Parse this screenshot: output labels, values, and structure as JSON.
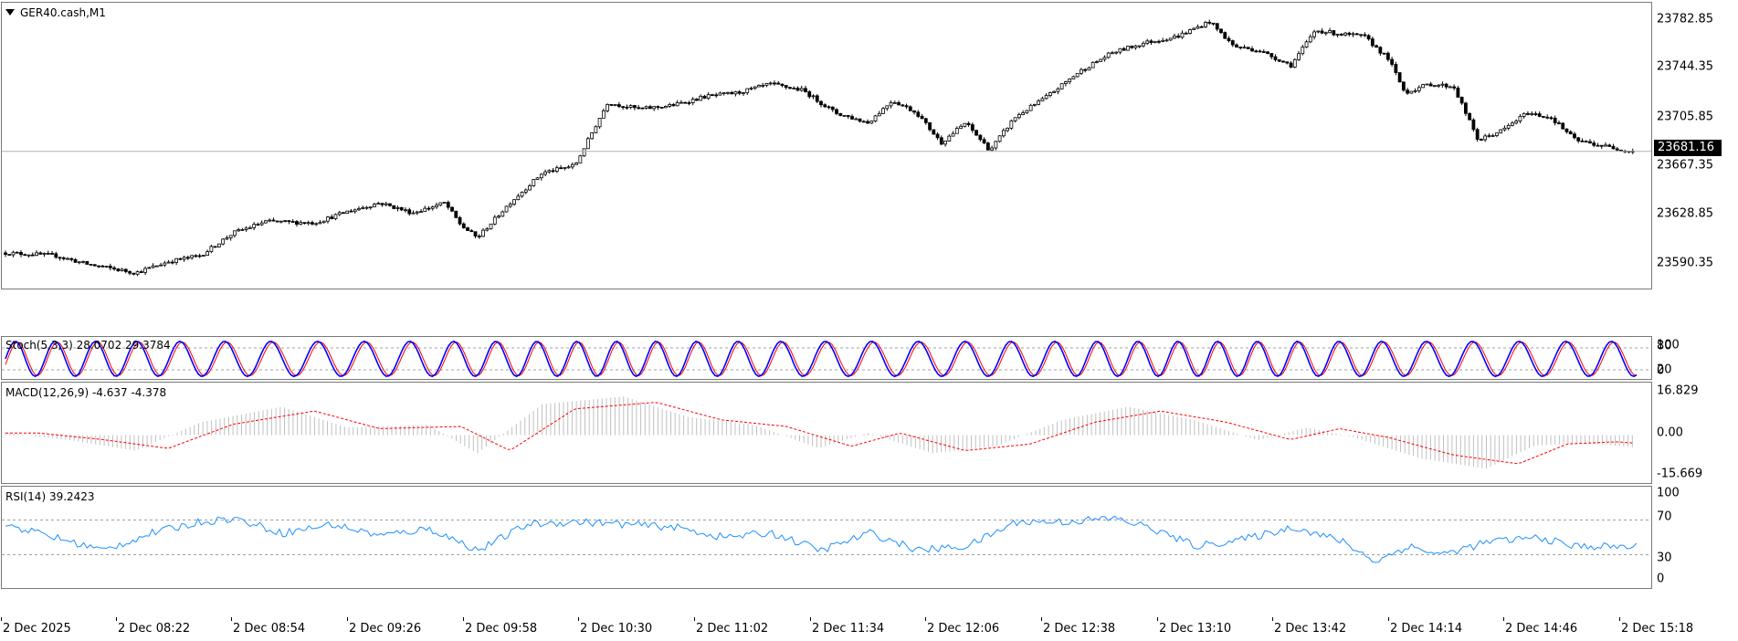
{
  "main": {
    "title": "GER40.cash,M1",
    "price_marker": "23681.16",
    "price_axis": [
      "23782.85",
      "23744.35",
      "23705.85",
      "23667.35",
      "23628.85",
      "23590.35"
    ]
  },
  "stoch": {
    "title": "Stoch(5,3,3) 28.0702 29.3784",
    "axis": [
      "100",
      "80",
      "20",
      "0"
    ]
  },
  "macd": {
    "title": "MACD(12,26,9) -4.637 -4.378",
    "axis": [
      "16.829",
      "0.00",
      "-15.669"
    ]
  },
  "rsi": {
    "title": "RSI(14) 39.2423",
    "axis": [
      "100",
      "70",
      "30",
      "0"
    ]
  },
  "time_axis": [
    "2 Dec 2025",
    "2 Dec 08:22",
    "2 Dec 08:54",
    "2 Dec 09:26",
    "2 Dec 09:58",
    "2 Dec 10:30",
    "2 Dec 11:02",
    "2 Dec 11:34",
    "2 Dec 12:06",
    "2 Dec 12:38",
    "2 Dec 13:10",
    "2 Dec 13:42",
    "2 Dec 14:14",
    "2 Dec 14:46",
    "2 Dec 15:18"
  ],
  "colors": {
    "candle": "#000000",
    "stoch_main": "#0000ff",
    "stoch_signal": "#ff0000",
    "macd_hist": "#c0c0c0",
    "macd_signal": "#ff0000",
    "rsi": "#1e90ff",
    "level": "#a0a0a0"
  },
  "chart_data": [
    {
      "type": "candlestick",
      "title": "GER40.cash,M1",
      "ylim": [
        23570,
        23800
      ],
      "last": 23681.16,
      "price_path": [
        [
          0,
          23600
        ],
        [
          0.03,
          23598
        ],
        [
          0.05,
          23591
        ],
        [
          0.08,
          23584
        ],
        [
          0.1,
          23593
        ],
        [
          0.12,
          23598
        ],
        [
          0.14,
          23616
        ],
        [
          0.16,
          23625
        ],
        [
          0.19,
          23624
        ],
        [
          0.21,
          23633
        ],
        [
          0.23,
          23640
        ],
        [
          0.25,
          23632
        ],
        [
          0.27,
          23640
        ],
        [
          0.28,
          23622
        ],
        [
          0.29,
          23612
        ],
        [
          0.31,
          23640
        ],
        [
          0.33,
          23664
        ],
        [
          0.35,
          23670
        ],
        [
          0.37,
          23720
        ],
        [
          0.39,
          23715
        ],
        [
          0.41,
          23718
        ],
        [
          0.43,
          23725
        ],
        [
          0.45,
          23728
        ],
        [
          0.47,
          23735
        ],
        [
          0.49,
          23730
        ],
        [
          0.51,
          23712
        ],
        [
          0.53,
          23704
        ],
        [
          0.545,
          23722
        ],
        [
          0.56,
          23712
        ],
        [
          0.575,
          23688
        ],
        [
          0.59,
          23704
        ],
        [
          0.605,
          23682
        ],
        [
          0.62,
          23708
        ],
        [
          0.64,
          23725
        ],
        [
          0.66,
          23745
        ],
        [
          0.68,
          23760
        ],
        [
          0.7,
          23768
        ],
        [
          0.72,
          23773
        ],
        [
          0.74,
          23785
        ],
        [
          0.755,
          23765
        ],
        [
          0.77,
          23762
        ],
        [
          0.79,
          23750
        ],
        [
          0.805,
          23778
        ],
        [
          0.82,
          23775
        ],
        [
          0.835,
          23773
        ],
        [
          0.85,
          23755
        ],
        [
          0.86,
          23728
        ],
        [
          0.875,
          23735
        ],
        [
          0.89,
          23733
        ],
        [
          0.905,
          23690
        ],
        [
          0.92,
          23698
        ],
        [
          0.935,
          23712
        ],
        [
          0.95,
          23708
        ],
        [
          0.965,
          23690
        ],
        [
          0.98,
          23686
        ],
        [
          1.0,
          23681
        ]
      ]
    },
    {
      "type": "line",
      "title": "Stoch(5,3,3) 28.0702 29.3784",
      "ylim": [
        0,
        100
      ],
      "levels": [
        20,
        80
      ],
      "series": [
        {
          "name": "Main",
          "last": 28.0702,
          "cycles": 38
        },
        {
          "name": "Signal",
          "last": 29.3784,
          "cycles": 38
        }
      ]
    },
    {
      "type": "bar",
      "title": "MACD(12,26,9) -4.637 -4.378",
      "ylim": [
        -15.669,
        16.829
      ],
      "series": [
        {
          "name": "Main",
          "last": -4.637
        },
        {
          "name": "Signal",
          "last": -4.378
        }
      ],
      "profile": [
        [
          0,
          1
        ],
        [
          0.04,
          -2
        ],
        [
          0.08,
          -6
        ],
        [
          0.12,
          5
        ],
        [
          0.17,
          11
        ],
        [
          0.21,
          3
        ],
        [
          0.26,
          4
        ],
        [
          0.29,
          -7
        ],
        [
          0.33,
          12
        ],
        [
          0.38,
          15
        ],
        [
          0.42,
          7
        ],
        [
          0.46,
          4
        ],
        [
          0.5,
          -5
        ],
        [
          0.53,
          1
        ],
        [
          0.57,
          -7
        ],
        [
          0.61,
          -4
        ],
        [
          0.65,
          6
        ],
        [
          0.69,
          11
        ],
        [
          0.73,
          6
        ],
        [
          0.77,
          -2
        ],
        [
          0.8,
          3
        ],
        [
          0.83,
          -1
        ],
        [
          0.87,
          -9
        ],
        [
          0.91,
          -13
        ],
        [
          0.94,
          -4
        ],
        [
          0.97,
          -3
        ],
        [
          1.0,
          -4.6
        ]
      ]
    },
    {
      "type": "line",
      "title": "RSI(14) 39.2423",
      "ylim": [
        0,
        100
      ],
      "levels": [
        30,
        70
      ],
      "last": 39.2423,
      "profile": [
        [
          0,
          65
        ],
        [
          0.03,
          50
        ],
        [
          0.06,
          35
        ],
        [
          0.09,
          55
        ],
        [
          0.12,
          68
        ],
        [
          0.14,
          72
        ],
        [
          0.17,
          55
        ],
        [
          0.2,
          65
        ],
        [
          0.23,
          52
        ],
        [
          0.26,
          60
        ],
        [
          0.29,
          35
        ],
        [
          0.32,
          65
        ],
        [
          0.35,
          68
        ],
        [
          0.38,
          65
        ],
        [
          0.41,
          62
        ],
        [
          0.44,
          50
        ],
        [
          0.47,
          55
        ],
        [
          0.5,
          35
        ],
        [
          0.53,
          55
        ],
        [
          0.56,
          35
        ],
        [
          0.59,
          40
        ],
        [
          0.62,
          68
        ],
        [
          0.65,
          68
        ],
        [
          0.68,
          72
        ],
        [
          0.7,
          62
        ],
        [
          0.73,
          40
        ],
        [
          0.76,
          48
        ],
        [
          0.79,
          62
        ],
        [
          0.82,
          45
        ],
        [
          0.84,
          22
        ],
        [
          0.86,
          40
        ],
        [
          0.88,
          30
        ],
        [
          0.91,
          45
        ],
        [
          0.94,
          50
        ],
        [
          0.96,
          40
        ],
        [
          1.0,
          39
        ]
      ]
    }
  ]
}
